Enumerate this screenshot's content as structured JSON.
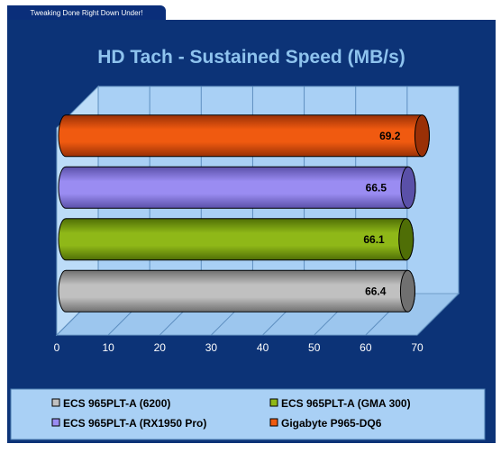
{
  "banner": {
    "tagline": "Tweaking Done Right Down Under!"
  },
  "colors": {
    "panel_bg": "#0c3377",
    "plot_bg": "#a9d0f5",
    "title_color": "#8ec3ee",
    "series": [
      "#c0c0c0",
      "#8fb818",
      "#9a8cf2",
      "#f05a10"
    ],
    "series_dark": [
      "#707070",
      "#4f6e06",
      "#5a50a8",
      "#9a3006"
    ]
  },
  "chart_data": {
    "type": "bar",
    "orientation": "horizontal",
    "style": "3d-cylinder",
    "title": "HD Tach - Sustained Speed (MB/s)",
    "xlabel": "",
    "ylabel": "",
    "xlim": [
      0,
      70
    ],
    "x_ticks": [
      "0",
      "10",
      "20",
      "30",
      "40",
      "50",
      "60",
      "70"
    ],
    "grid": true,
    "legend_position": "bottom",
    "series": [
      {
        "name": "ECS 965PLT-A (6200)",
        "value": 66.4,
        "label": "66.4"
      },
      {
        "name": "ECS 965PLT-A (GMA 300)",
        "value": 66.1,
        "label": "66.1"
      },
      {
        "name": "ECS 965PLT-A (RX1950 Pro)",
        "value": 66.5,
        "label": "66.5"
      },
      {
        "name": "Gigabyte P965-DQ6",
        "value": 69.2,
        "label": "69.2"
      }
    ]
  }
}
